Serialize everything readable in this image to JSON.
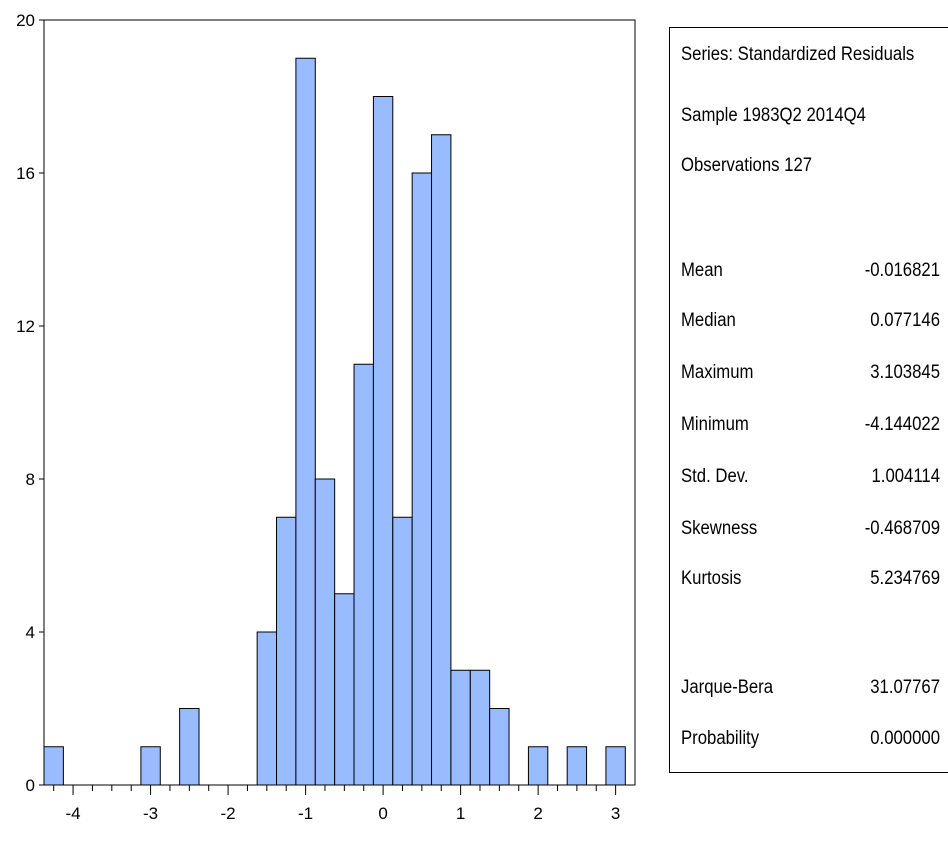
{
  "chart_data": {
    "type": "bar",
    "title": "",
    "xlabel": "",
    "ylabel": "",
    "bar_color": "#99bbff",
    "bin_width": 0.25,
    "xlim": [
      -4.375,
      3.25
    ],
    "ylim": [
      0,
      20
    ],
    "xticks": [
      -4,
      -3,
      -2,
      -1,
      0,
      1,
      2,
      3
    ],
    "yticks": [
      0,
      4,
      8,
      12,
      16,
      20
    ],
    "bins": [
      {
        "left": -4.375,
        "value": 1
      },
      {
        "left": -3.125,
        "value": 1
      },
      {
        "left": -2.625,
        "value": 2
      },
      {
        "left": -1.625,
        "value": 4
      },
      {
        "left": -1.375,
        "value": 7
      },
      {
        "left": -1.125,
        "value": 19
      },
      {
        "left": -0.875,
        "value": 8
      },
      {
        "left": -0.625,
        "value": 5
      },
      {
        "left": -0.375,
        "value": 11
      },
      {
        "left": -0.125,
        "value": 18
      },
      {
        "left": 0.125,
        "value": 7
      },
      {
        "left": 0.375,
        "value": 16
      },
      {
        "left": 0.625,
        "value": 17
      },
      {
        "left": 0.875,
        "value": 3
      },
      {
        "left": 1.125,
        "value": 3
      },
      {
        "left": 1.375,
        "value": 2
      },
      {
        "left": 1.875,
        "value": 1
      },
      {
        "left": 2.375,
        "value": 1
      },
      {
        "left": 2.875,
        "value": 1
      }
    ]
  },
  "stats": {
    "series": "Series: Standardized Residuals",
    "sample": "Sample 1983Q2 2014Q4",
    "observations": "Observations 127",
    "rows": [
      {
        "label": "Mean",
        "value": "-0.016821"
      },
      {
        "label": "Median",
        "value": "0.077146"
      },
      {
        "label": "Maximum",
        "value": "3.103845"
      },
      {
        "label": "Minimum",
        "value": "-4.144022"
      },
      {
        "label": "Std. Dev.",
        "value": "1.004114"
      },
      {
        "label": "Skewness",
        "value": "-0.468709"
      },
      {
        "label": "Kurtosis",
        "value": "5.234769"
      }
    ],
    "tests": [
      {
        "label": "Jarque-Bera",
        "value": "31.07767"
      },
      {
        "label": "Probability",
        "value": "0.000000"
      }
    ]
  }
}
